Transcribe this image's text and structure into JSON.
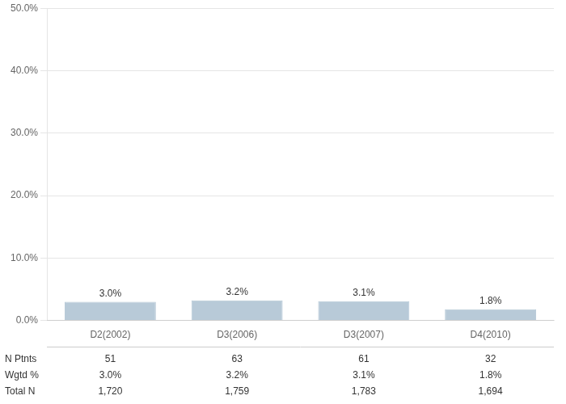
{
  "chart_data": {
    "type": "bar",
    "categories": [
      "D2(2002)",
      "D3(2006)",
      "D3(2007)",
      "D4(2010)"
    ],
    "values": [
      3.0,
      3.2,
      3.1,
      1.8
    ],
    "value_labels": [
      "3.0%",
      "3.2%",
      "3.1%",
      "1.8%"
    ],
    "data_labels": true,
    "color": "#b8cad8",
    "ylim": [
      0,
      50
    ],
    "yticks": [
      {
        "value": 0,
        "label": "0.0%"
      },
      {
        "value": 10,
        "label": "10.0%"
      },
      {
        "value": 20,
        "label": "20.0%"
      },
      {
        "value": 30,
        "label": "30.0%"
      },
      {
        "value": 40,
        "label": "40.0%"
      },
      {
        "value": 50,
        "label": "50.0%"
      }
    ],
    "grid": true,
    "table": {
      "rows": [
        {
          "label": "N Ptnts",
          "values": [
            "51",
            "63",
            "61",
            "32"
          ]
        },
        {
          "label": "Wgtd %",
          "values": [
            "3.0%",
            "3.2%",
            "3.1%",
            "1.8%"
          ]
        },
        {
          "label": "Total N",
          "values": [
            "1,720",
            "1,759",
            "1,783",
            "1,694"
          ]
        }
      ]
    }
  }
}
